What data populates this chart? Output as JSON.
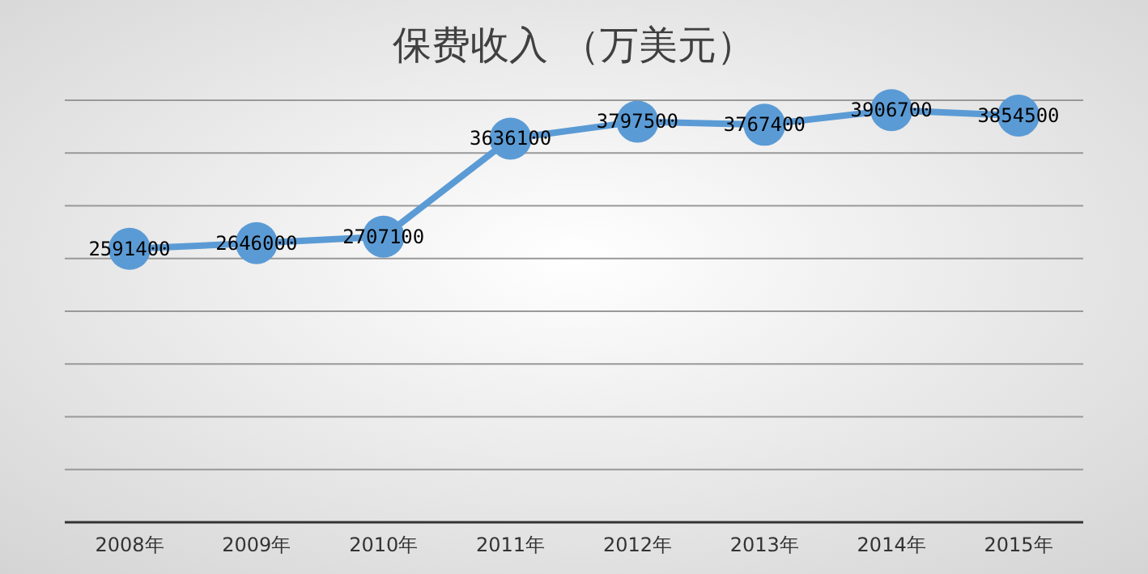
{
  "chart_data": {
    "type": "line",
    "title": "保费收入 （万美元）",
    "categories": [
      "2008年",
      "2009年",
      "2010年",
      "2011年",
      "2012年",
      "2013年",
      "2014年",
      "2015年"
    ],
    "series": [
      {
        "color": "#5b9bd5",
        "values": [
          2591400,
          2646000,
          2707100,
          3636100,
          3797500,
          3767400,
          3906700,
          3854500
        ]
      }
    ],
    "ylim": [
      0,
      4000000
    ],
    "yticks": [
      {
        "value": 0,
        "label": null
      },
      {
        "value": 500000,
        "label": null
      },
      {
        "value": 1000000,
        "label": null
      },
      {
        "value": 1500000,
        "label": null
      },
      {
        "value": 2000000,
        "label": null
      },
      {
        "value": 2500000,
        "label": null
      },
      {
        "value": 3000000,
        "label": null
      },
      {
        "value": 3500000,
        "label": null
      },
      {
        "value": 4000000,
        "label": null
      }
    ],
    "tick_labels": "x",
    "grid": "y",
    "marker": "circle",
    "line_style": "solid",
    "data_labels": true
  }
}
